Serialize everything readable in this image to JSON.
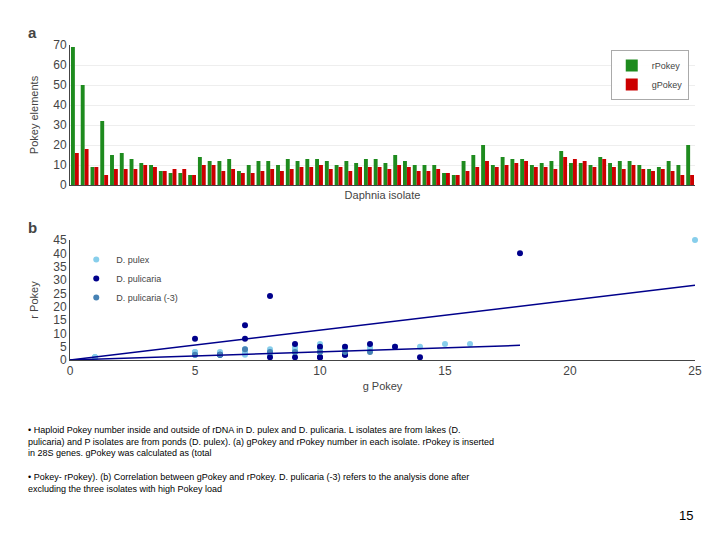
{
  "chart_data": [
    {
      "type": "bar",
      "title": "a",
      "x_label": "Daphnia isolate",
      "y_label": "Pokey elements",
      "categories": [
        null,
        null,
        null,
        null,
        null,
        null,
        null,
        null,
        null,
        null,
        null,
        null,
        null,
        null,
        null,
        null,
        null,
        null,
        null,
        null,
        null,
        null,
        null,
        null,
        null,
        null,
        null,
        null,
        null,
        null,
        null,
        null,
        null,
        null,
        null,
        null,
        null,
        null,
        null,
        null,
        null,
        null,
        null,
        null,
        null,
        null,
        null,
        null,
        null,
        null,
        null,
        null,
        null,
        null,
        null,
        null,
        null,
        null,
        null,
        null,
        null,
        null,
        null,
        null
      ],
      "series": [
        {
          "name": "rPokey",
          "color": "#1e8b1e",
          "values": [
            69,
            50,
            9,
            32,
            15,
            16,
            13,
            11,
            10,
            7,
            6,
            6,
            5,
            14,
            12,
            12,
            13,
            7,
            10,
            12,
            12,
            10,
            13,
            12,
            13,
            13,
            12,
            10,
            12,
            11,
            13,
            13,
            11,
            15,
            12,
            10,
            10,
            10,
            6,
            5,
            12,
            15,
            20,
            10,
            14,
            13,
            13,
            10,
            11,
            12,
            17,
            11,
            11,
            10,
            14,
            11,
            12,
            12,
            10,
            8,
            9,
            12,
            10,
            20
          ]
        },
        {
          "name": "gPokey",
          "color": "#cc0000",
          "values": [
            16,
            18,
            9,
            5,
            8,
            8,
            8,
            10,
            9,
            7,
            8,
            8,
            5,
            10,
            10,
            7,
            8,
            6,
            6,
            7,
            8,
            7,
            8,
            9,
            9,
            10,
            8,
            9,
            7,
            9,
            9,
            9,
            8,
            10,
            9,
            7,
            7,
            8,
            6,
            5,
            7,
            9,
            12,
            9,
            10,
            11,
            12,
            9,
            9,
            8,
            14,
            13,
            12,
            9,
            13,
            9,
            8,
            10,
            8,
            7,
            8,
            7,
            5,
            5
          ]
        }
      ],
      "ylim": [
        0,
        70
      ],
      "yticks": [
        0,
        10,
        20,
        30,
        40,
        50,
        60,
        70
      ],
      "grid": true,
      "legend": "upper right",
      "tick_labels": "y"
    },
    {
      "type": "scatter",
      "title": "b",
      "x_label": "g Pokey",
      "y_label": "r Pokey",
      "series": [
        {
          "name": "D. pulex",
          "color": "#87CEEB",
          "marker": "circle",
          "x": [
            1,
            1,
            1,
            1,
            5,
            5,
            5,
            5,
            5,
            6,
            6,
            6,
            7,
            7,
            7,
            7,
            8,
            8,
            8,
            8,
            8,
            8,
            9,
            9,
            9,
            9,
            9,
            10,
            10,
            10,
            10,
            10,
            11,
            11,
            11,
            12,
            12,
            12,
            13,
            13,
            14,
            15,
            16,
            25
          ],
          "values": [
            1,
            1,
            1,
            1,
            2,
            2,
            2,
            3,
            3,
            2,
            2,
            3,
            2,
            3,
            3,
            4,
            2,
            2,
            3,
            3,
            3,
            4,
            3,
            3,
            4,
            4,
            5,
            3,
            4,
            4,
            5,
            6,
            4,
            4,
            5,
            4,
            4,
            5,
            5,
            5,
            5,
            6,
            6,
            45
          ]
        },
        {
          "name": "D. pulicaria",
          "color": "#00008B",
          "marker": "circle",
          "x": [
            5,
            6,
            7,
            7,
            8,
            8,
            9,
            9,
            10,
            10,
            10,
            11,
            11,
            11,
            12,
            13,
            14,
            18
          ],
          "values": [
            8,
            2,
            8,
            13,
            1,
            24,
            1,
            6,
            1,
            1,
            5,
            2,
            2,
            5,
            6,
            5,
            1,
            40
          ]
        },
        {
          "name": "D. pulicaria (-3)",
          "color": "#4682B4",
          "marker": "circle",
          "x": [
            5,
            6,
            7,
            8,
            9,
            10,
            11,
            12
          ],
          "values": [
            2,
            2,
            4,
            3,
            3,
            3,
            3,
            3
          ]
        },
        {
          "type": "line",
          "color": "#00008B",
          "line_style": "solid",
          "x": [
            0,
            25
          ],
          "values": [
            0,
            28
          ]
        },
        {
          "type": "line",
          "color": "#00008B",
          "line_style": "solid",
          "x": [
            0,
            18
          ],
          "values": [
            0,
            5.5
          ]
        }
      ],
      "xlim": [
        0,
        25
      ],
      "xticks": [
        0,
        5,
        10,
        15,
        20,
        25
      ],
      "ylim": [
        0,
        45
      ],
      "yticks": [
        0,
        5,
        10,
        15,
        20,
        25,
        30,
        35,
        40,
        45
      ],
      "grid": false,
      "legend": "upper left",
      "annotations": [
        "• Haploid Pokey number inside and outside of rDNA in D. pulex and D. pulicaria. L isolates are from lakes (D.\npulicaria) and P isolates are from ponds (D. pulex). (a) gPokey and rPokey number in each isolate. rPokey is inserted\nin 28S genes. gPokey was calculated as (total",
        "• Pokey- rPokey). (b) Correlation between gPokey and rPokey. D. pulicaria (-3) refers to the analysis done after\nexcluding the three isolates with high Pokey load",
        "15"
      ]
    }
  ]
}
